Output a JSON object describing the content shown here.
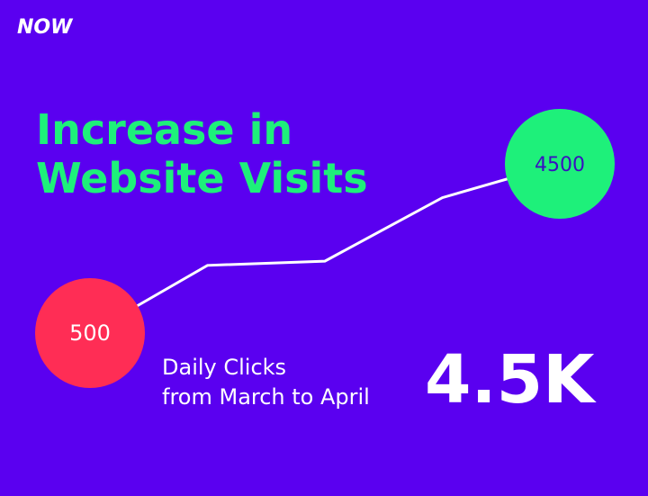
{
  "logo": "NOW",
  "chart_data": {
    "type": "line",
    "title": [
      "Increase in",
      "Website Visits"
    ],
    "categories": [
      null,
      null,
      null,
      null,
      null
    ],
    "series": [
      {
        "name": null,
        "color": "#ffffff",
        "values": [
          500,
          2100,
          2200,
          3700,
          4500
        ]
      }
    ],
    "start_color": "#ff2d55",
    "end_color": "#1ef07a",
    "caption": [
      "Daily Clicks",
      "from March to April"
    ],
    "headline": "4.5K"
  }
}
